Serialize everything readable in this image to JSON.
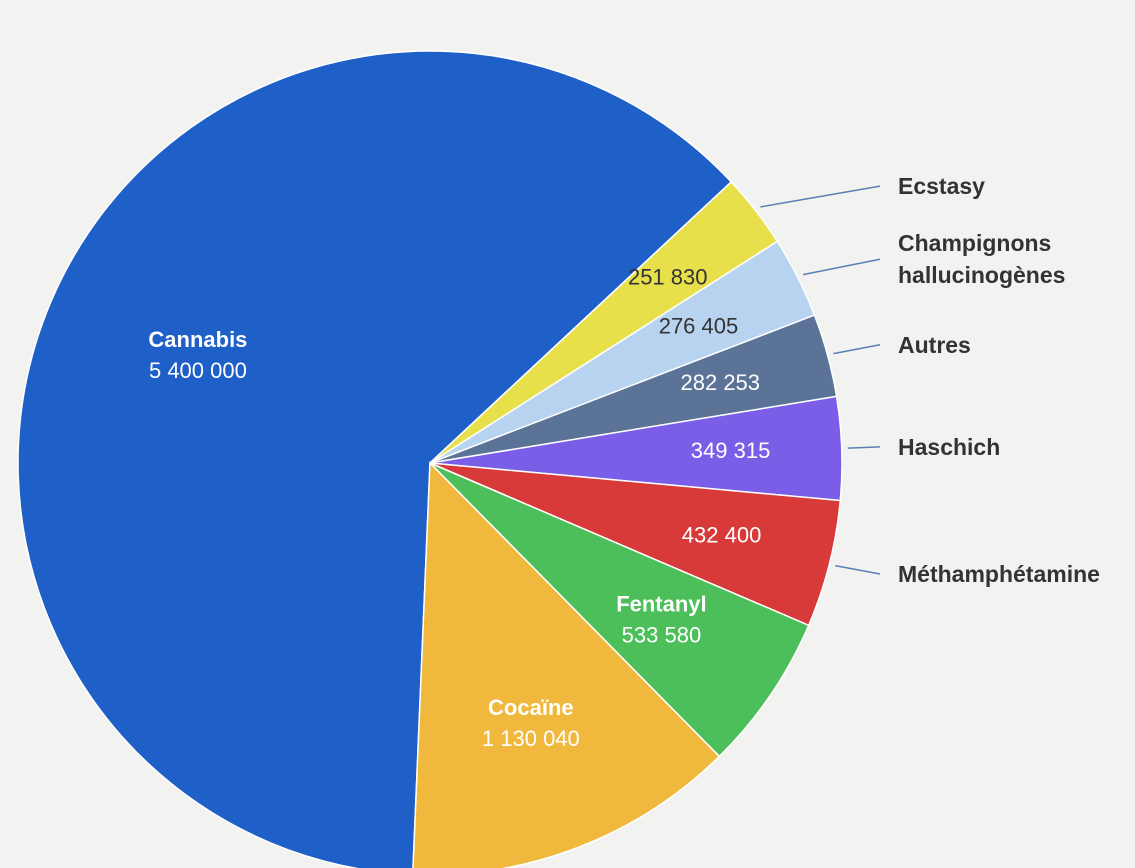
{
  "chart_data": {
    "type": "pie",
    "categories": [
      "Cannabis",
      "Ecstasy",
      "Champignons hallucinogènes",
      "Autres",
      "Haschich",
      "Méthamphétamine",
      "Fentanyl",
      "Cocaïne"
    ],
    "values": [
      5400000,
      251830,
      276405,
      282253,
      349315,
      432400,
      533580,
      1130040
    ],
    "value_labels": [
      "5 400 000",
      "251 830",
      "276 405",
      "282 253",
      "349 315",
      "432 400",
      "533 580",
      "1 130 040"
    ],
    "colors": [
      "#1f5fc8",
      "#e8e04a",
      "#b7d3f0",
      "#5a7396",
      "#7b5ee8",
      "#d83a3a",
      "#4cbf5a",
      "#f0b83c"
    ]
  }
}
